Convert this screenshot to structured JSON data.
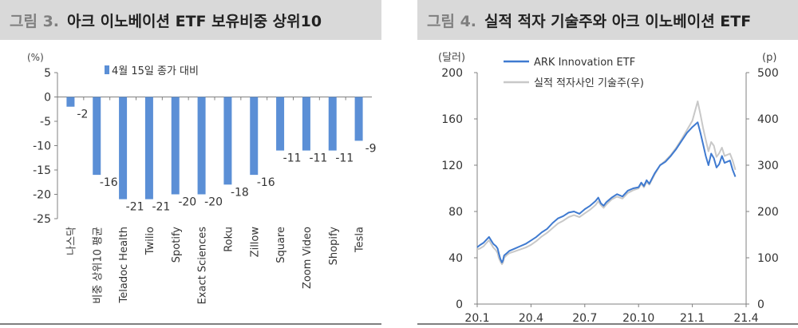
{
  "left": {
    "fig_num": "그림 3.",
    "title": "아크 이노베이션 ETF 보유비중 상위10",
    "chart_data": {
      "type": "bar",
      "unit_label": "(%)",
      "legend": "4월 15일 종가 대비",
      "categories": [
        "나스닥",
        "비중 상위10 평균",
        "Teladoc Health",
        "Twilio",
        "Spotify",
        "Exact Sciences",
        "Roku",
        "Zillow",
        "Square",
        "Zoom Video",
        "Shopify",
        "Tesla"
      ],
      "values": [
        -2,
        -16,
        -21,
        -21,
        -20,
        -20,
        -18,
        -16,
        -11,
        -11,
        -11,
        -9
      ],
      "data_labels": [
        "-2",
        "-16",
        "-21",
        "-21",
        "-20",
        "-20",
        "-18",
        "-16",
        "-11",
        "-11",
        "-11",
        "-9"
      ],
      "ylim": [
        -25,
        5
      ],
      "yticks": [
        5,
        0,
        -5,
        -10,
        -15,
        -20,
        -25
      ],
      "ytick_labels": [
        "5",
        "0",
        "-5",
        "-10",
        "-15",
        "-20",
        "-25"
      ],
      "bar_color": "#5b8fd6",
      "grid": false
    }
  },
  "right": {
    "fig_num": "그림 4.",
    "title": "실적 적자 기술주와 아크 이노베이션 ETF",
    "chart_data": {
      "type": "line",
      "left_unit": "(달러)",
      "right_unit": "(p)",
      "ylim_left": [
        0,
        200
      ],
      "ylim_right": [
        0,
        500
      ],
      "yticks_left": [
        "0",
        "40",
        "80",
        "120",
        "160",
        "200"
      ],
      "yticks_right": [
        "0",
        "100",
        "200",
        "300",
        "400",
        "500"
      ],
      "xticks": [
        "20.1",
        "20.4",
        "20.7",
        "20.10",
        "21.1",
        "21.4"
      ],
      "series": [
        {
          "name": "ARK Innovation ETF",
          "axis": "left",
          "color": "#3f7ad0",
          "points": [
            [
              0,
              49
            ],
            [
              0.05,
              51
            ],
            [
              0.12,
              53
            ],
            [
              0.18,
              56
            ],
            [
              0.22,
              58
            ],
            [
              0.26,
              55
            ],
            [
              0.3,
              52
            ],
            [
              0.35,
              50
            ],
            [
              0.38,
              48
            ],
            [
              0.4,
              44
            ],
            [
              0.43,
              39
            ],
            [
              0.46,
              36
            ],
            [
              0.48,
              38
            ],
            [
              0.5,
              42
            ],
            [
              0.55,
              44
            ],
            [
              0.6,
              46
            ],
            [
              0.7,
              48
            ],
            [
              0.8,
              50
            ],
            [
              0.9,
              52
            ],
            [
              1.0,
              55
            ],
            [
              1.1,
              58
            ],
            [
              1.2,
              62
            ],
            [
              1.3,
              65
            ],
            [
              1.4,
              70
            ],
            [
              1.5,
              74
            ],
            [
              1.6,
              76
            ],
            [
              1.7,
              79
            ],
            [
              1.8,
              80
            ],
            [
              1.9,
              78
            ],
            [
              2.0,
              82
            ],
            [
              2.1,
              85
            ],
            [
              2.2,
              89
            ],
            [
              2.25,
              92
            ],
            [
              2.3,
              87
            ],
            [
              2.35,
              85
            ],
            [
              2.4,
              88
            ],
            [
              2.5,
              92
            ],
            [
              2.6,
              95
            ],
            [
              2.7,
              93
            ],
            [
              2.8,
              98
            ],
            [
              2.9,
              100
            ],
            [
              3.0,
              101
            ],
            [
              3.05,
              105
            ],
            [
              3.1,
              102
            ],
            [
              3.15,
              107
            ],
            [
              3.2,
              104
            ],
            [
              3.3,
              113
            ],
            [
              3.4,
              120
            ],
            [
              3.5,
              123
            ],
            [
              3.6,
              128
            ],
            [
              3.7,
              134
            ],
            [
              3.8,
              141
            ],
            [
              3.9,
              148
            ],
            [
              4.0,
              153
            ],
            [
              4.1,
              157
            ],
            [
              4.15,
              148
            ],
            [
              4.2,
              138
            ],
            [
              4.25,
              128
            ],
            [
              4.3,
              120
            ],
            [
              4.35,
              130
            ],
            [
              4.4,
              126
            ],
            [
              4.45,
              118
            ],
            [
              4.5,
              121
            ],
            [
              4.55,
              128
            ],
            [
              4.6,
              122
            ],
            [
              4.7,
              124
            ],
            [
              4.75,
              116
            ],
            [
              4.8,
              110
            ]
          ]
        },
        {
          "name": "실적 적자사인 기술주(우)",
          "axis": "right",
          "color": "#c8c8c8",
          "points": [
            [
              0,
              118
            ],
            [
              0.05,
              120
            ],
            [
              0.12,
              125
            ],
            [
              0.18,
              133
            ],
            [
              0.22,
              138
            ],
            [
              0.26,
              130
            ],
            [
              0.3,
              122
            ],
            [
              0.35,
              116
            ],
            [
              0.38,
              110
            ],
            [
              0.4,
              100
            ],
            [
              0.43,
              92
            ],
            [
              0.46,
              86
            ],
            [
              0.48,
              90
            ],
            [
              0.5,
              100
            ],
            [
              0.55,
              106
            ],
            [
              0.6,
              110
            ],
            [
              0.7,
              114
            ],
            [
              0.8,
              118
            ],
            [
              0.9,
              122
            ],
            [
              1.0,
              128
            ],
            [
              1.1,
              136
            ],
            [
              1.2,
              146
            ],
            [
              1.3,
              154
            ],
            [
              1.4,
              164
            ],
            [
              1.5,
              174
            ],
            [
              1.6,
              180
            ],
            [
              1.7,
              188
            ],
            [
              1.8,
              192
            ],
            [
              1.9,
              188
            ],
            [
              2.0,
              196
            ],
            [
              2.1,
              204
            ],
            [
              2.2,
              214
            ],
            [
              2.25,
              222
            ],
            [
              2.3,
              214
            ],
            [
              2.35,
              208
            ],
            [
              2.4,
              215
            ],
            [
              2.5,
              226
            ],
            [
              2.6,
              232
            ],
            [
              2.7,
              228
            ],
            [
              2.8,
              240
            ],
            [
              2.9,
              246
            ],
            [
              3.0,
              250
            ],
            [
              3.05,
              260
            ],
            [
              3.1,
              252
            ],
            [
              3.15,
              264
            ],
            [
              3.2,
              258
            ],
            [
              3.3,
              280
            ],
            [
              3.4,
              300
            ],
            [
              3.5,
              310
            ],
            [
              3.6,
              322
            ],
            [
              3.7,
              338
            ],
            [
              3.8,
              356
            ],
            [
              3.9,
              376
            ],
            [
              4.0,
              396
            ],
            [
              4.1,
              438
            ],
            [
              4.15,
              410
            ],
            [
              4.2,
              380
            ],
            [
              4.25,
              355
            ],
            [
              4.3,
              330
            ],
            [
              4.35,
              350
            ],
            [
              4.4,
              342
            ],
            [
              4.45,
              318
            ],
            [
              4.5,
              326
            ],
            [
              4.55,
              338
            ],
            [
              4.6,
              320
            ],
            [
              4.7,
              325
            ],
            [
              4.75,
              310
            ],
            [
              4.8,
              290
            ]
          ]
        }
      ],
      "grid": false
    }
  }
}
